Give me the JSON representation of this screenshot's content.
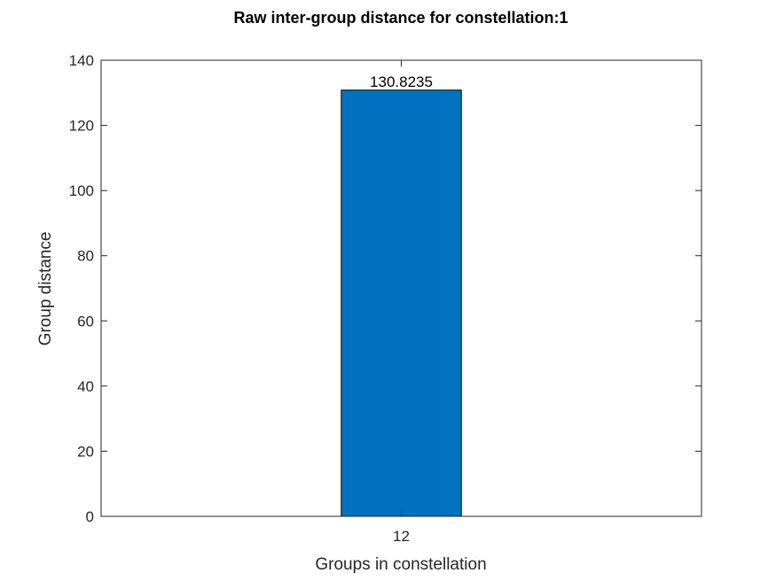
{
  "chart_data": {
    "type": "bar",
    "title": "Raw inter-group distance for constellation:1",
    "xlabel": "Groups in constellation",
    "ylabel": "Group distance",
    "categories": [
      "12"
    ],
    "values": [
      130.8235
    ],
    "data_labels": [
      "130.8235"
    ],
    "ylim": [
      0,
      140
    ],
    "yticks": [
      0,
      20,
      40,
      60,
      80,
      100,
      120,
      140
    ],
    "grid": false,
    "bar_color": "#0072BD"
  }
}
